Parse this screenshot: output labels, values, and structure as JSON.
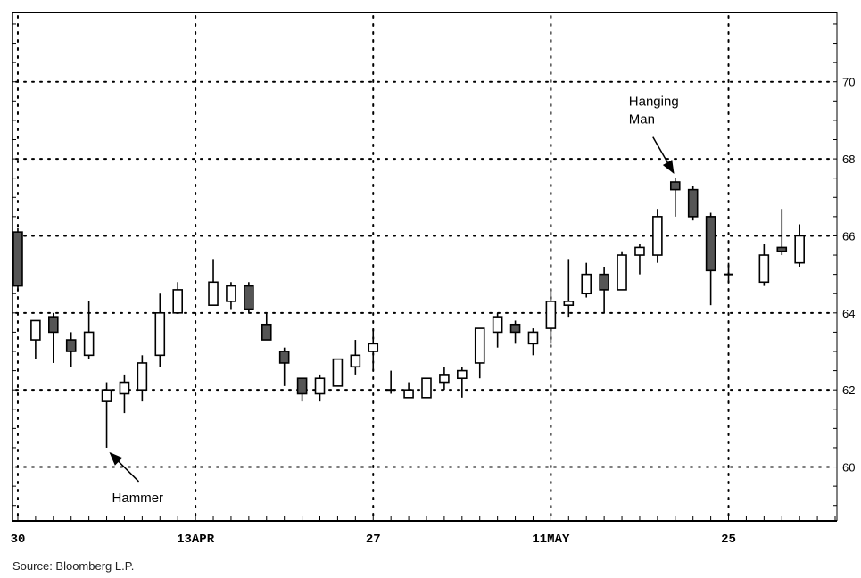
{
  "chart_data": {
    "type": "candlestick",
    "title": "",
    "xlabel": "",
    "ylabel": "",
    "x_tick_labels": [
      {
        "label": "30",
        "index": 0
      },
      {
        "label": "13APR",
        "index": 10
      },
      {
        "label": "27",
        "index": 20
      },
      {
        "label": "11MAY",
        "index": 30
      },
      {
        "label": "25",
        "index": 40
      }
    ],
    "y_ticks": [
      60,
      62,
      64,
      66,
      68,
      70
    ],
    "y_tick_labels": [
      "60",
      "62",
      "64",
      "66",
      "68",
      "70"
    ],
    "ylim": [
      58.6,
      71.8
    ],
    "xlim": [
      -0.3,
      46.1
    ],
    "grid": true,
    "candles": [
      {
        "i": 0,
        "open": 66.1,
        "high": 66.2,
        "low": 64.6,
        "close": 64.7,
        "fill": "dark"
      },
      {
        "i": 1,
        "open": 63.3,
        "high": 63.8,
        "low": 62.8,
        "close": 63.8,
        "fill": "hollow"
      },
      {
        "i": 2,
        "open": 63.9,
        "high": 64.0,
        "low": 62.7,
        "close": 63.5,
        "fill": "dark"
      },
      {
        "i": 3,
        "open": 63.3,
        "high": 63.5,
        "low": 62.6,
        "close": 63.0,
        "fill": "dark"
      },
      {
        "i": 4,
        "open": 62.9,
        "high": 64.3,
        "low": 62.8,
        "close": 63.5,
        "fill": "hollow"
      },
      {
        "i": 5,
        "open": 61.7,
        "high": 62.2,
        "low": 60.5,
        "close": 62.0,
        "fill": "hollow"
      },
      {
        "i": 6,
        "open": 61.9,
        "high": 62.4,
        "low": 61.4,
        "close": 62.2,
        "fill": "hollow"
      },
      {
        "i": 7,
        "open": 62.0,
        "high": 62.9,
        "low": 61.7,
        "close": 62.7,
        "fill": "hollow"
      },
      {
        "i": 8,
        "open": 62.9,
        "high": 64.5,
        "low": 62.6,
        "close": 64.0,
        "fill": "hollow"
      },
      {
        "i": 9,
        "open": 64.0,
        "high": 64.8,
        "low": 64.0,
        "close": 64.6,
        "fill": "hollow"
      },
      {
        "i": 11,
        "open": 64.2,
        "high": 65.4,
        "low": 64.2,
        "close": 64.8,
        "fill": "hollow"
      },
      {
        "i": 12,
        "open": 64.3,
        "high": 64.8,
        "low": 64.1,
        "close": 64.7,
        "fill": "hollow"
      },
      {
        "i": 13,
        "open": 64.7,
        "high": 64.8,
        "low": 64.0,
        "close": 64.1,
        "fill": "dark"
      },
      {
        "i": 14,
        "open": 63.7,
        "high": 64.0,
        "low": 63.3,
        "close": 63.3,
        "fill": "dark"
      },
      {
        "i": 15,
        "open": 63.0,
        "high": 63.1,
        "low": 62.1,
        "close": 62.7,
        "fill": "dark"
      },
      {
        "i": 16,
        "open": 62.3,
        "high": 62.3,
        "low": 61.7,
        "close": 61.9,
        "fill": "dark"
      },
      {
        "i": 17,
        "open": 61.9,
        "high": 62.4,
        "low": 61.7,
        "close": 62.3,
        "fill": "hollow"
      },
      {
        "i": 18,
        "open": 62.1,
        "high": 62.8,
        "low": 62.1,
        "close": 62.8,
        "fill": "hollow"
      },
      {
        "i": 19,
        "open": 62.6,
        "high": 63.3,
        "low": 62.4,
        "close": 62.9,
        "fill": "hollow"
      },
      {
        "i": 20,
        "open": 63.0,
        "high": 63.6,
        "low": 62.5,
        "close": 63.2,
        "fill": "hollow"
      },
      {
        "i": 21,
        "open": 62.0,
        "high": 62.5,
        "low": 61.9,
        "close": 62.0,
        "fill": "hollow"
      },
      {
        "i": 22,
        "open": 61.8,
        "high": 62.2,
        "low": 61.8,
        "close": 62.0,
        "fill": "hollow"
      },
      {
        "i": 23,
        "open": 61.8,
        "high": 62.3,
        "low": 61.8,
        "close": 62.3,
        "fill": "hollow"
      },
      {
        "i": 24,
        "open": 62.2,
        "high": 62.6,
        "low": 62.0,
        "close": 62.4,
        "fill": "hollow"
      },
      {
        "i": 25,
        "open": 62.3,
        "high": 62.6,
        "low": 61.8,
        "close": 62.5,
        "fill": "hollow"
      },
      {
        "i": 26,
        "open": 62.7,
        "high": 63.5,
        "low": 62.3,
        "close": 63.6,
        "fill": "hollow"
      },
      {
        "i": 27,
        "open": 63.5,
        "high": 64.0,
        "low": 63.1,
        "close": 63.9,
        "fill": "hollow"
      },
      {
        "i": 28,
        "open": 63.7,
        "high": 63.8,
        "low": 63.2,
        "close": 63.5,
        "fill": "dark"
      },
      {
        "i": 29,
        "open": 63.2,
        "high": 63.6,
        "low": 62.9,
        "close": 63.5,
        "fill": "hollow"
      },
      {
        "i": 30,
        "open": 63.6,
        "high": 64.6,
        "low": 63.2,
        "close": 64.3,
        "fill": "hollow"
      },
      {
        "i": 31,
        "open": 64.2,
        "high": 65.4,
        "low": 63.9,
        "close": 64.3,
        "fill": "hollow"
      },
      {
        "i": 32,
        "open": 64.5,
        "high": 65.3,
        "low": 64.4,
        "close": 65.0,
        "fill": "hollow"
      },
      {
        "i": 33,
        "open": 65.0,
        "high": 65.2,
        "low": 64.0,
        "close": 64.6,
        "fill": "dark"
      },
      {
        "i": 34,
        "open": 64.6,
        "high": 65.6,
        "low": 64.6,
        "close": 65.5,
        "fill": "hollow"
      },
      {
        "i": 35,
        "open": 65.5,
        "high": 65.8,
        "low": 65.0,
        "close": 65.7,
        "fill": "hollow"
      },
      {
        "i": 36,
        "open": 65.5,
        "high": 66.7,
        "low": 65.3,
        "close": 66.5,
        "fill": "hollow"
      },
      {
        "i": 37,
        "open": 67.4,
        "high": 67.5,
        "low": 66.5,
        "close": 67.2,
        "fill": "dark"
      },
      {
        "i": 38,
        "open": 67.2,
        "high": 67.3,
        "low": 66.4,
        "close": 66.5,
        "fill": "dark"
      },
      {
        "i": 39,
        "open": 66.5,
        "high": 66.6,
        "low": 64.2,
        "close": 65.1,
        "fill": "dark"
      },
      {
        "i": 40,
        "open": 65.0,
        "high": 65.3,
        "low": 64.8,
        "close": 65.0,
        "fill": "hollow"
      },
      {
        "i": 42,
        "open": 64.8,
        "high": 65.8,
        "low": 64.7,
        "close": 65.5,
        "fill": "hollow"
      },
      {
        "i": 43,
        "open": 65.7,
        "high": 66.7,
        "low": 65.5,
        "close": 65.6,
        "fill": "dark"
      },
      {
        "i": 44,
        "open": 65.3,
        "high": 66.3,
        "low": 65.2,
        "close": 66.0,
        "fill": "hollow"
      }
    ],
    "annotations": [
      {
        "text": "Hammer",
        "target_index": 5,
        "target_value": 60.5
      },
      {
        "text_lines": [
          "Hanging",
          "Man"
        ],
        "target_index": 37,
        "target_value": 67.5
      }
    ],
    "colors": {
      "background": "#ffffff",
      "ink": "#000000",
      "dark_fill": "#555555"
    }
  },
  "footer": {
    "source": "Source: Bloomberg L.P."
  }
}
